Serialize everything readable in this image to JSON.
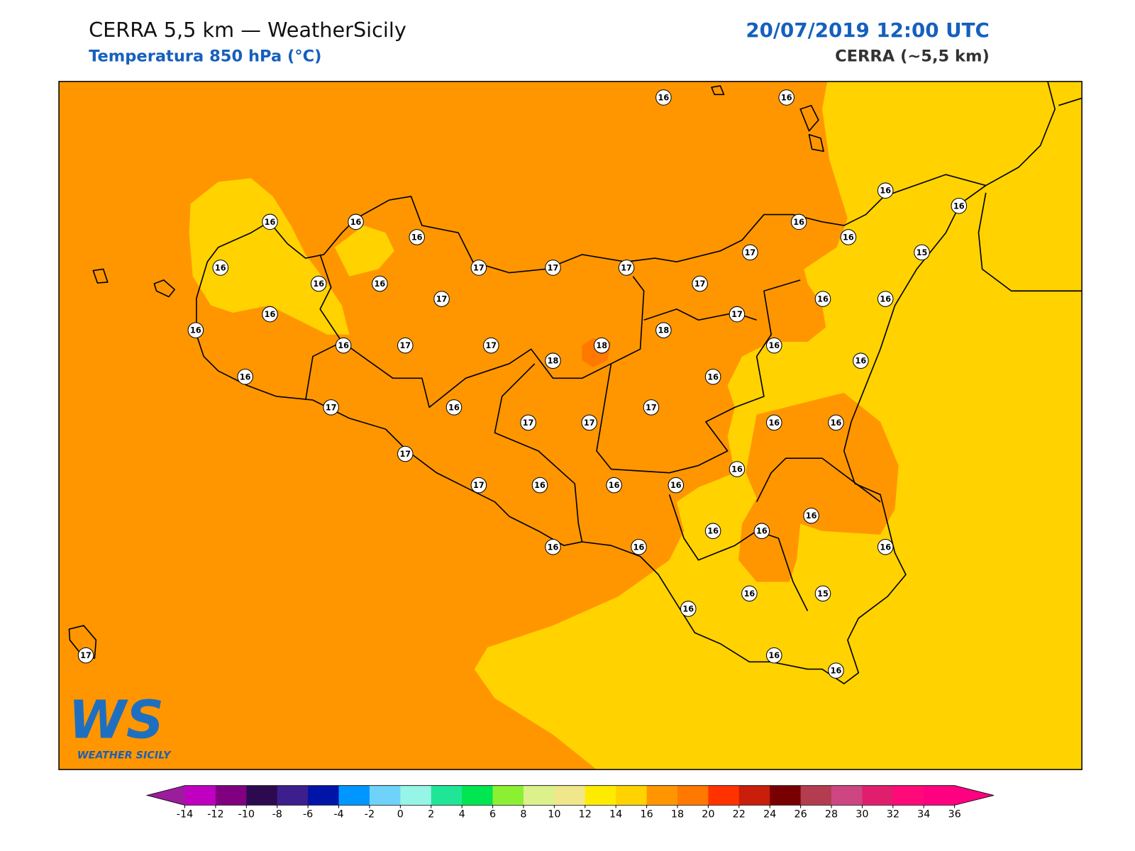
{
  "header": {
    "title": "CERRA 5,5 km — WeatherSicily",
    "subtitle": "Temperatura 850 hPa (°C)",
    "date": "20/07/2019 12:00 UTC",
    "model": "CERRA (~5,5 km)"
  },
  "stations": [
    16,
    16,
    16,
    16,
    16,
    16,
    16,
    16,
    16,
    17,
    15,
    16,
    17,
    17,
    17,
    16,
    16,
    17,
    17,
    16,
    16,
    16,
    17,
    16,
    18,
    16,
    17,
    17,
    18,
    16,
    18,
    16,
    16,
    16,
    17,
    16,
    17,
    17,
    17,
    16,
    16,
    17,
    16,
    17,
    16,
    16,
    16,
    16,
    16,
    16,
    16,
    16,
    16,
    16,
    16,
    15,
    17,
    16,
    16
  ],
  "colorbar": {
    "ticks": [
      -14,
      -12,
      -10,
      -8,
      -6,
      -4,
      -2,
      0,
      2,
      4,
      6,
      8,
      10,
      12,
      14,
      16,
      18,
      20,
      22,
      24,
      26,
      28,
      30,
      32,
      34,
      36
    ],
    "colors": [
      "#c000c0",
      "#800080",
      "#2d0a50",
      "#3c1e8c",
      "#0014a8",
      "#0096ff",
      "#6ed2fa",
      "#96f5e6",
      "#1ee696",
      "#00e650",
      "#8cf032",
      "#dcf08c",
      "#f0e68c",
      "#ffeb00",
      "#ffd200",
      "#ff9600",
      "#ff7800",
      "#ff3200",
      "#c81e0a",
      "#780000",
      "#b43c50",
      "#cd4682",
      "#e11e6e",
      "#ff0a78",
      "#ff0080"
    ],
    "under_color": "#9b1c9c",
    "over_color": "#ff0080"
  },
  "logo": {
    "mark": "WS",
    "name": "WEATHER SICILY"
  }
}
